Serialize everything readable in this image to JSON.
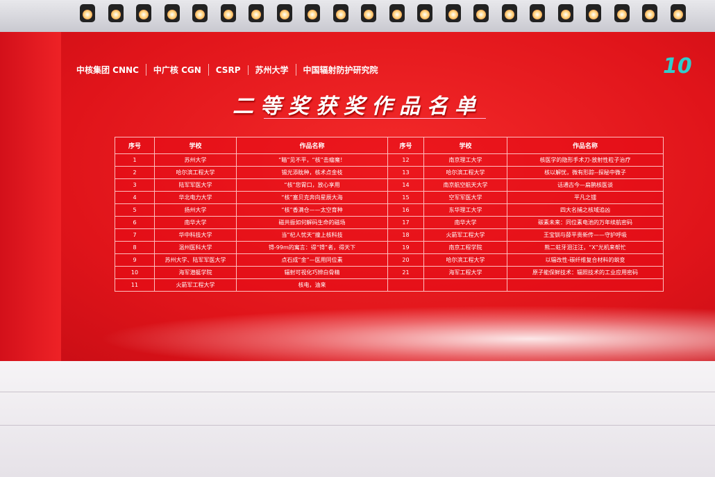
{
  "sponsors": [
    "中核集团 CNNC",
    "中广核 CGN",
    "CSRP",
    "苏州大学",
    "中国辐射防护研究院"
  ],
  "anniversary": "10",
  "title": "二等奖获奖作品名单",
  "columns": [
    "序号",
    "学校",
    "作品名称",
    "序号",
    "学校",
    "作品名称"
  ],
  "rows": [
    [
      "1",
      "苏州大学",
      "“瞄”见不平，“核”击瘤魔！",
      "12",
      "南京理工大学",
      "核医学的隐形手术刀-放射性粒子治疗"
    ],
    [
      "2",
      "哈尔滨工程大学",
      "锡光添眈种，核术点金枝",
      "13",
      "哈尔滨工程大学",
      "核以解忧，微有形踪--探秘中微子"
    ],
    [
      "3",
      "陆军军医大学",
      "“核”您胃口，放心享用",
      "14",
      "南京航空航天大学",
      "话通古今—扁鹊核医谈"
    ],
    [
      "4",
      "华北电力大学",
      "“核”塞贝克奔向星辰大海",
      "15",
      "空军军医大学",
      "平凡之镭"
    ],
    [
      "5",
      "扬州大学",
      "“核”香满仓——太空育种",
      "16",
      "东华理工大学",
      "四大名捕之核域追凶"
    ],
    [
      "6",
      "南华大学",
      "磁共振如何解码生命的磁场",
      "17",
      "南华大学",
      "碳素未来：同位素电池的万年续航密码"
    ],
    [
      "7",
      "华中科技大学",
      "当“杞人忧天”撞上核科技",
      "18",
      "火箭军工程大学",
      "王宝钏与薛平贵新传——守护呼吸"
    ],
    [
      "8",
      "温州医科大学",
      "锝-99m的寓言：得“锝”者，得天下",
      "19",
      "南京工程学院",
      "熊二蛀牙泪汪汪，“X”光机来帮忙"
    ],
    [
      "9",
      "苏州大学、陆军军医大学",
      "点石成“金”—医用同位素",
      "20",
      "哈尔滨工程大学",
      "以辐改性-碳纤维复合材料的蜕变"
    ],
    [
      "10",
      "海军潜艇学院",
      "辐射可视化巧辨白骨精",
      "21",
      "海军工程大学",
      "原子能保鲜技术：辐照技术的工业应用密码"
    ],
    [
      "11",
      "火箭军工程大学",
      "核电，油来",
      "",
      "",
      ""
    ]
  ]
}
